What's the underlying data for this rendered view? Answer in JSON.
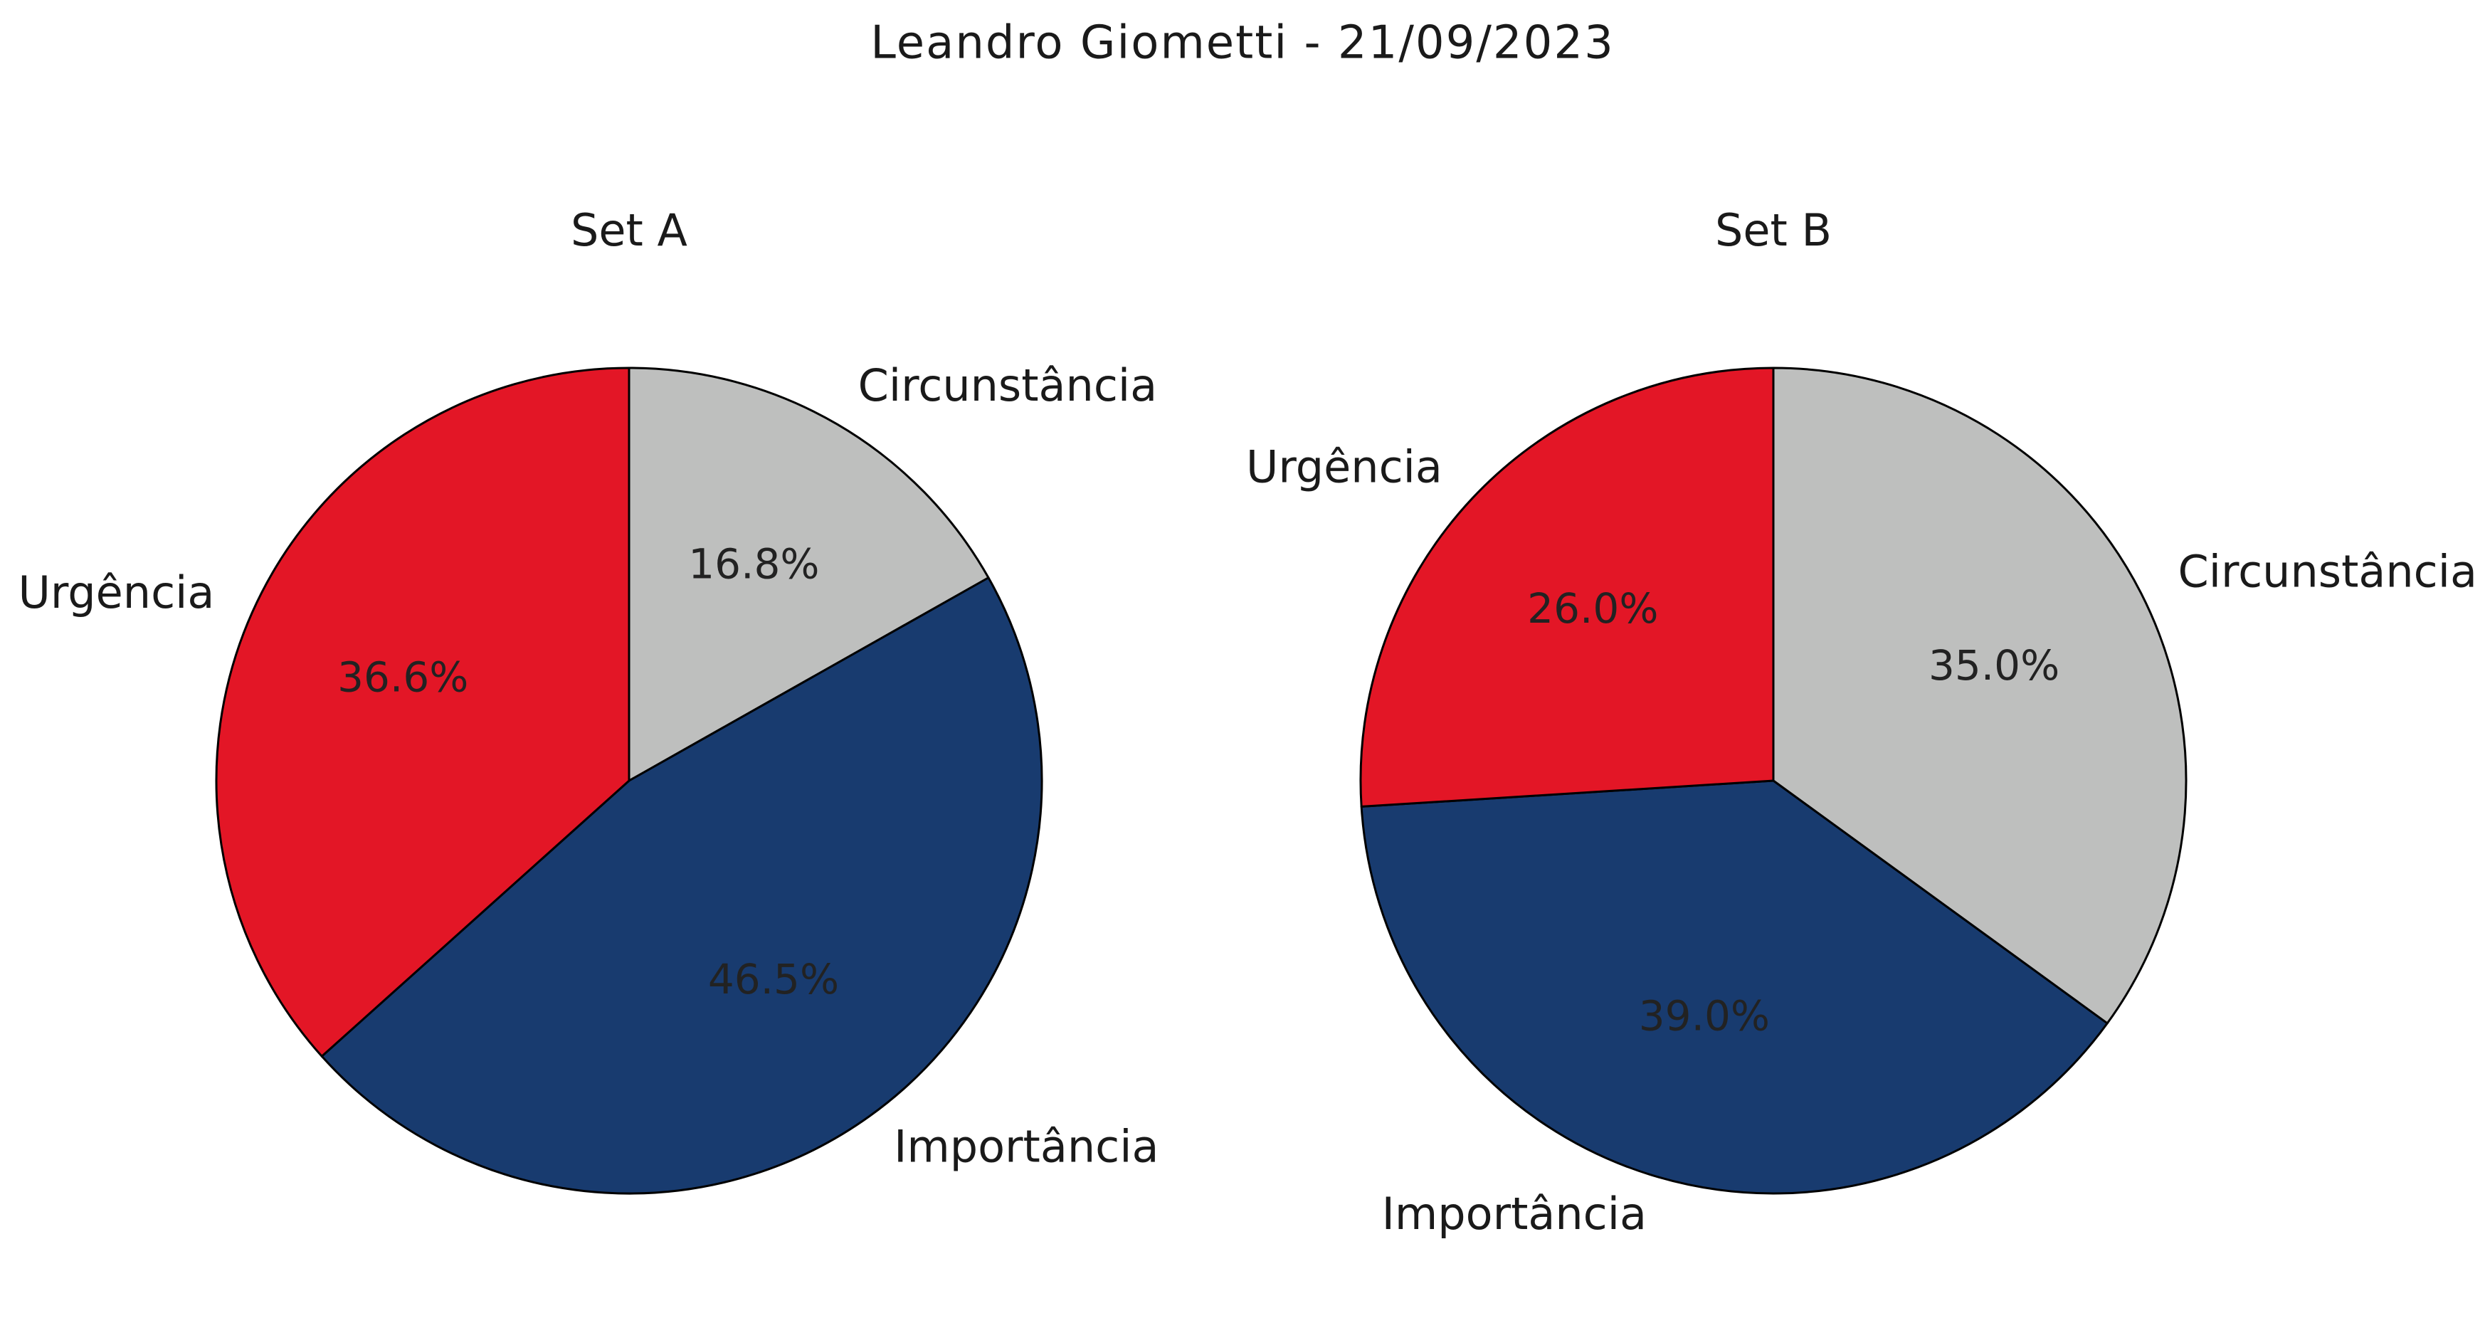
{
  "figure": {
    "title": "Leandro Giometti - 21/09/2023"
  },
  "chart_data": [
    {
      "type": "pie",
      "title": "Set A",
      "start_angle_deg": 90,
      "direction": "clockwise",
      "slices": [
        {
          "label": "Circunstância",
          "value": 16.8,
          "pct_label": "16.8%",
          "color": "#bebfbe"
        },
        {
          "label": "Importância",
          "value": 46.5,
          "pct_label": "46.5%",
          "color": "#183b6f"
        },
        {
          "label": "Urgência",
          "value": 36.6,
          "pct_label": "36.6%",
          "color": "#e31626"
        }
      ]
    },
    {
      "type": "pie",
      "title": "Set B",
      "start_angle_deg": 90,
      "direction": "clockwise",
      "slices": [
        {
          "label": "Circunstância",
          "value": 35.0,
          "pct_label": "35.0%",
          "color": "#bebfbe"
        },
        {
          "label": "Importância",
          "value": 39.0,
          "pct_label": "39.0%",
          "color": "#183b6f"
        },
        {
          "label": "Urgência",
          "value": 26.0,
          "pct_label": "26.0%",
          "color": "#e31626"
        }
      ]
    }
  ]
}
